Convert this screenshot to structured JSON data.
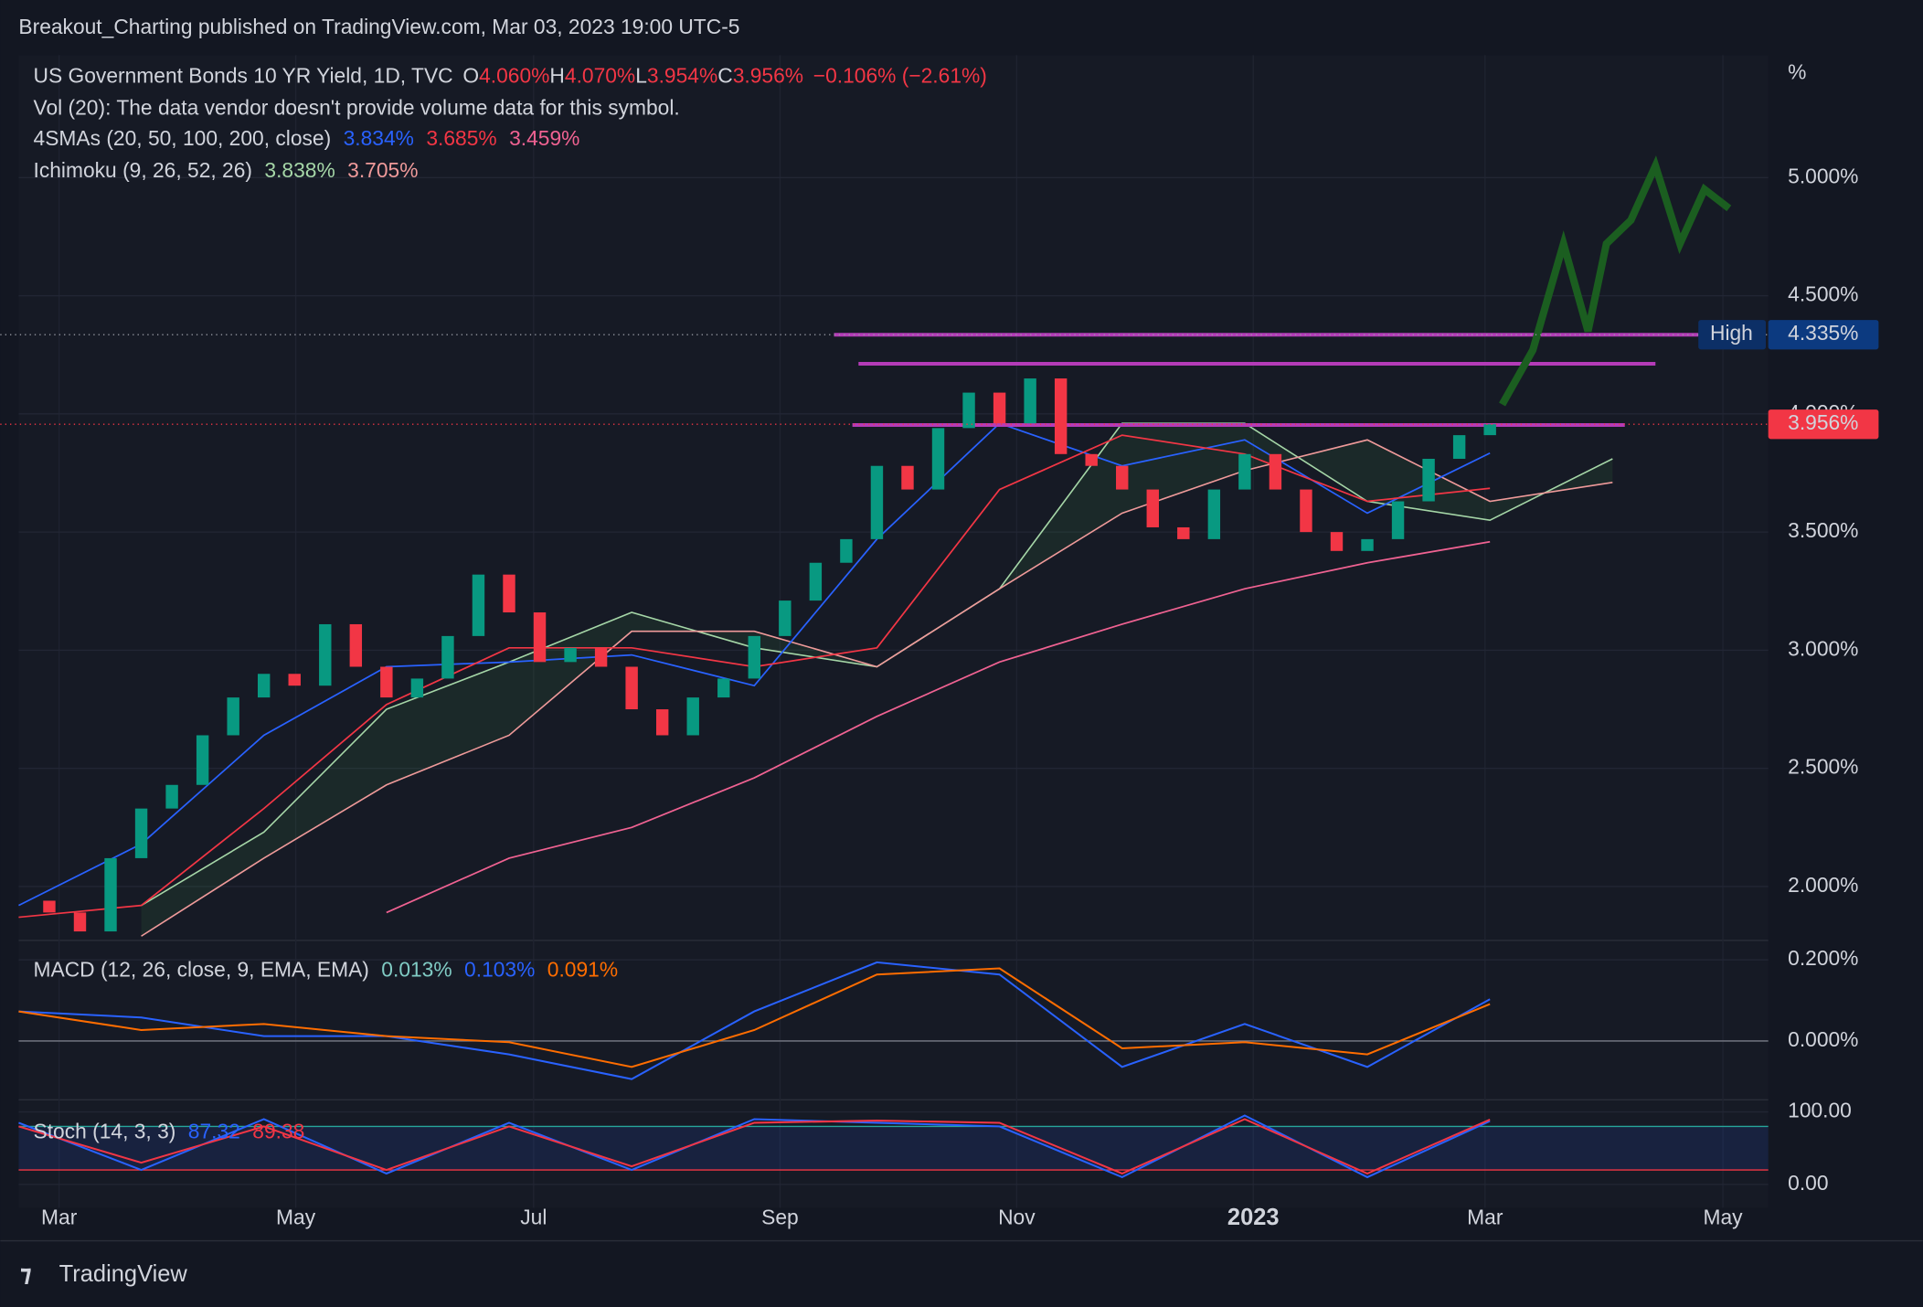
{
  "header": "Breakout_Charting published on TradingView.com, Mar 03, 2023 19:00 UTC-5",
  "chart_data": {
    "type": "candlestick",
    "legend": {
      "symbol": "US Government Bonds 10 YR Yield, 1D, TVC",
      "ohlc": [
        [
          "O",
          "4.060%"
        ],
        [
          "H",
          "4.070%"
        ],
        [
          "L",
          "3.954%"
        ],
        [
          "C",
          "3.956%"
        ]
      ],
      "change": "−0.106% (−2.61%)",
      "vol": "Vol (20): The data vendor doesn't provide volume data for this symbol.",
      "sma": {
        "name": "4SMAs (20, 50, 100, 200, close)",
        "values": [
          "3.834%",
          "3.685%",
          "3.459%"
        ],
        "colors": [
          "#2962ff",
          "#f23645",
          "#f06292"
        ]
      },
      "ichimoku": {
        "name": "Ichimoku (9, 26, 52, 26)",
        "values": [
          "3.838%",
          "3.705%"
        ],
        "colors": [
          "#a5d6a7",
          "#ef9a9a"
        ]
      }
    },
    "unit": "%",
    "close": [
      1.94,
      1.89,
      1.81,
      2.12,
      2.33,
      2.43,
      2.64,
      2.8,
      2.9,
      2.85,
      3.11,
      2.93,
      2.8,
      2.88,
      3.06,
      3.32,
      3.16,
      2.95,
      3.01,
      2.93,
      2.75,
      2.64,
      2.8,
      2.88,
      3.06,
      3.21,
      3.37,
      3.47,
      3.78,
      3.68,
      3.94,
      4.09,
      3.96,
      4.15,
      3.83,
      3.78,
      3.68,
      3.52,
      3.47,
      3.68,
      3.83,
      3.68,
      3.5,
      3.42,
      3.47,
      3.63,
      3.81,
      3.91,
      3.956
    ],
    "up_color": "#089981",
    "down_color": "#f23645",
    "sma": [
      {
        "color": "#2962ff",
        "values": [
          1.92,
          2.18,
          2.64,
          2.93,
          2.95,
          2.98,
          2.85,
          3.47,
          3.96,
          3.78,
          3.89,
          3.58,
          3.834
        ]
      },
      {
        "color": "#f23645",
        "values": [
          1.87,
          1.92,
          2.33,
          2.77,
          3.01,
          3.01,
          2.93,
          3.01,
          3.68,
          3.91,
          3.83,
          3.63,
          3.685
        ]
      },
      {
        "color": "#f06292",
        "values": [
          null,
          null,
          null,
          1.89,
          2.12,
          2.25,
          2.46,
          2.72,
          2.95,
          3.11,
          3.26,
          3.37,
          3.459
        ]
      }
    ],
    "ichimoku_span_a": {
      "color": "#a5d6a7",
      "values": [
        null,
        1.92,
        2.23,
        2.75,
        2.95,
        3.16,
        3.01,
        2.93,
        3.26,
        3.96,
        3.96,
        3.63,
        3.55,
        3.81
      ]
    },
    "ichimoku_span_b": {
      "color": "#ef9a9a",
      "values": [
        null,
        1.79,
        2.12,
        2.43,
        2.64,
        3.08,
        3.08,
        2.93,
        3.26,
        3.58,
        3.76,
        3.89,
        3.63,
        3.71
      ]
    },
    "levels": [
      {
        "value": 4.335,
        "color": "#b43bb8"
      },
      {
        "value": 4.212,
        "color": "#b43bb8"
      },
      {
        "value": 3.953,
        "color": "#b43bb8"
      }
    ],
    "high": {
      "label": "High",
      "value": 4.335,
      "value_label": "4.335%"
    },
    "last": {
      "value": 3.956,
      "value_label": "3.956%"
    },
    "projection": {
      "color": "#1b5e20",
      "values": [
        4.04,
        4.27,
        4.72,
        4.35,
        4.72,
        4.82,
        5.05,
        4.72,
        4.95,
        4.87
      ]
    },
    "ylim": [
      1.772,
      5.518
    ],
    "yticks": [
      {
        "value": 2,
        "label": "2.000%"
      },
      {
        "value": 2.5,
        "label": "2.500%"
      },
      {
        "value": 3,
        "label": "3.000%"
      },
      {
        "value": 3.5,
        "label": "3.500%"
      },
      {
        "value": 4,
        "label": "4.000%"
      },
      {
        "value": 4.5,
        "label": "4.500%"
      },
      {
        "value": 5,
        "label": "5.000%"
      }
    ],
    "xlabels": [
      "Mar",
      "May",
      "Jul",
      "Sep",
      "Nov",
      "2023",
      "Mar",
      "May"
    ],
    "macd": {
      "title": "MACD (12, 26, close, 9, EMA, EMA)",
      "legend_values": [
        "0.013%",
        "0.103%",
        "0.091%"
      ],
      "legend_colors": [
        "#80cbc4",
        "#2962ff",
        "#ff6d00"
      ],
      "macd": {
        "color": "#2962ff",
        "values": [
          0.073,
          0.058,
          0.012,
          0.012,
          -0.033,
          -0.094,
          0.073,
          0.194,
          0.164,
          -0.064,
          0.042,
          -0.064,
          0.103
        ]
      },
      "signal": {
        "color": "#ff6d00",
        "values": [
          0.073,
          0.027,
          0.042,
          0.012,
          -0.003,
          -0.064,
          0.027,
          0.164,
          0.179,
          -0.018,
          -0.003,
          -0.033,
          0.091
        ]
      },
      "ylim": [
        -0.145,
        0.239
      ],
      "yticks": [
        {
          "value": 0,
          "label": "0.000%"
        },
        {
          "value": 0.2,
          "label": "0.200%"
        }
      ]
    },
    "stoch": {
      "title": "Stoch (14, 3, 3)",
      "legend_values": [
        "87.32",
        "89.38"
      ],
      "legend_colors": [
        "#2962ff",
        "#f23645"
      ],
      "k": {
        "color": "#2962ff",
        "values": [
          85,
          20,
          90,
          15,
          85,
          20,
          90,
          85,
          80,
          10,
          95,
          10,
          87.32
        ]
      },
      "d": {
        "color": "#f23645",
        "values": [
          80,
          30,
          80,
          20,
          80,
          25,
          85,
          88,
          85,
          15,
          90,
          15,
          89.38
        ]
      },
      "ylim": [
        -27,
        115
      ],
      "yticks": [
        {
          "value": 0,
          "label": "0.00"
        },
        {
          "value": 100,
          "label": "100.00"
        }
      ],
      "bands": [
        80,
        20
      ]
    }
  },
  "footer": "TradingView"
}
